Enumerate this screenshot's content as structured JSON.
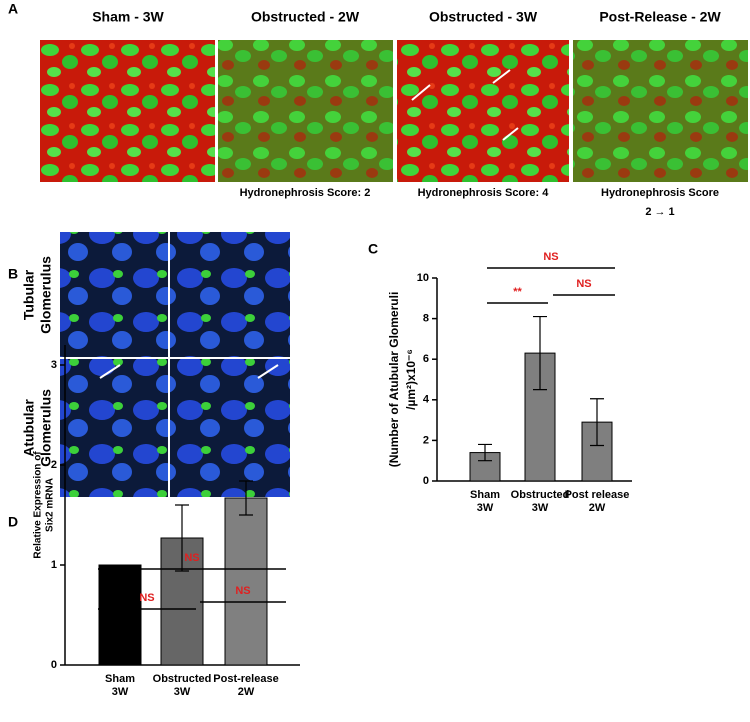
{
  "panel_a": {
    "label": "A",
    "titles": [
      "Sham - 3W",
      "Obstructed - 2W",
      "Obstructed - 3W",
      "Post-Release - 2W"
    ],
    "scores": [
      "Hydronephrosis  Score: 2",
      "Hydronephrosis  Score: 4",
      "Hydronephrosis  Score"
    ],
    "score_change": "2 → 1"
  },
  "panel_b": {
    "label": "B",
    "row_labels": [
      [
        "Tubular",
        "Glomerulus"
      ],
      [
        "Atubular",
        "Glomerulus"
      ]
    ]
  },
  "panel_c": {
    "label": "C"
  },
  "panel_d": {
    "label": "D"
  },
  "chart_data": [
    {
      "type": "bar",
      "y_label": [
        "(Number of Atubular  Glomeruli",
        "/µm²)x10⁻⁶"
      ],
      "categories": [
        "Sham 3W",
        "Obstructed 3W",
        "Post release 2W"
      ],
      "values": [
        1.4,
        6.3,
        2.9
      ],
      "errors": [
        0.4,
        1.8,
        1.15
      ],
      "colors": [
        "#7f7f7f",
        "#7f7f7f",
        "#7f7f7f"
      ],
      "ylim": [
        0,
        10
      ],
      "yticks": [
        0,
        2,
        4,
        6,
        8,
        10
      ],
      "annotations": [
        "NS",
        "**",
        "NS"
      ]
    },
    {
      "type": "bar",
      "y_label": [
        "Relative Expression of",
        "Six2 mRNA"
      ],
      "categories": [
        "Sham 3W",
        "Obstructed 3W",
        "Post-release 2W"
      ],
      "values": [
        1.0,
        1.27,
        1.67
      ],
      "errors": [
        0,
        0.33,
        0.17
      ],
      "colors": [
        "#000000",
        "#666666",
        "#808080"
      ],
      "ylim": [
        0,
        3.2
      ],
      "yticks": [
        0,
        1,
        2,
        3
      ],
      "annotations": [
        "NS",
        "NS",
        "NS"
      ]
    }
  ]
}
